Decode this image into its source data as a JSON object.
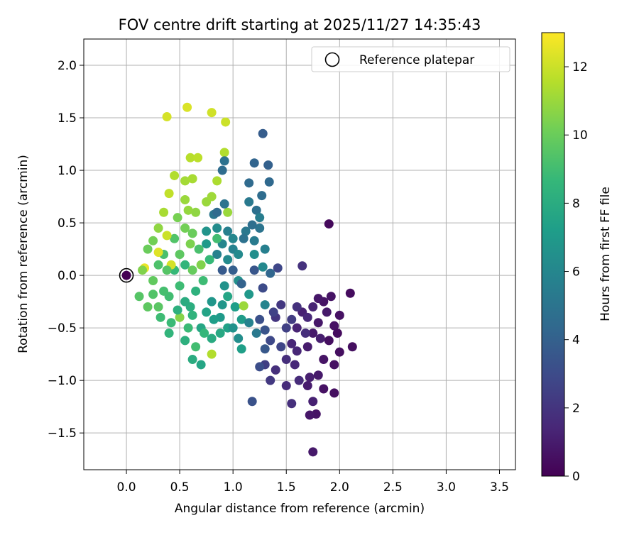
{
  "chart_data": {
    "type": "scatter",
    "title": "FOV centre drift starting at 2025/11/27 14:35:43",
    "xlabel": "Angular distance from reference (arcmin)",
    "ylabel": "Rotation from reference (arcmin)",
    "xlim": [
      -0.4,
      3.65
    ],
    "ylim": [
      -1.85,
      2.25
    ],
    "xticks": [
      0.0,
      0.5,
      1.0,
      1.5,
      2.0,
      2.5,
      3.0,
      3.5
    ],
    "yticks": [
      -1.5,
      -1.0,
      -0.5,
      0.0,
      0.5,
      1.0,
      1.5,
      2.0
    ],
    "xtick_labels": [
      "0.0",
      "0.5",
      "1.0",
      "1.5",
      "2.0",
      "2.5",
      "3.0",
      "3.5"
    ],
    "ytick_labels": [
      "−1.5",
      "−1.0",
      "−0.5",
      "0.0",
      "0.5",
      "1.0",
      "1.5",
      "2.0"
    ],
    "grid": true,
    "legend": {
      "placement": "top-right",
      "entries": [
        {
          "label": "Reference platepar",
          "marker": "open-circle"
        }
      ]
    },
    "reference_point": {
      "x": 0.0,
      "y": 0.0
    },
    "colorbar": {
      "label": "Hours from first FF file",
      "range": [
        0,
        13
      ],
      "ticks": [
        0,
        2,
        4,
        6,
        8,
        10,
        12
      ],
      "colormap": "viridis"
    },
    "points": [
      [
        1.9,
        0.49,
        0.3
      ],
      [
        2.1,
        -0.17,
        0.4
      ],
      [
        2.12,
        -0.68,
        0.5
      ],
      [
        2.0,
        -0.73,
        0.5
      ],
      [
        1.95,
        -0.48,
        0.6
      ],
      [
        1.85,
        -0.25,
        0.7
      ],
      [
        1.8,
        -0.45,
        0.8
      ],
      [
        1.95,
        -0.85,
        0.6
      ],
      [
        1.9,
        -0.62,
        0.5
      ],
      [
        1.75,
        -0.55,
        0.9
      ],
      [
        1.7,
        -0.68,
        1.0
      ],
      [
        1.8,
        -0.22,
        0.8
      ],
      [
        1.95,
        -1.12,
        0.5
      ],
      [
        1.85,
        -1.08,
        0.6
      ],
      [
        1.78,
        -1.32,
        0.7
      ],
      [
        1.72,
        -1.33,
        0.8
      ],
      [
        1.75,
        -1.68,
        0.9
      ],
      [
        1.72,
        -0.97,
        1.1
      ],
      [
        1.65,
        -0.35,
        1.2
      ],
      [
        1.6,
        -0.5,
        1.3
      ],
      [
        1.55,
        -0.65,
        1.4
      ],
      [
        1.58,
        -0.85,
        1.5
      ],
      [
        1.62,
        -1.0,
        1.6
      ],
      [
        1.5,
        -0.8,
        1.7
      ],
      [
        1.55,
        -1.22,
        1.8
      ],
      [
        1.65,
        0.09,
        1.9
      ],
      [
        1.4,
        -0.4,
        2.0
      ],
      [
        1.35,
        -1.0,
        2.2
      ],
      [
        1.3,
        -0.85,
        2.4
      ],
      [
        1.38,
        -0.35,
        2.6
      ],
      [
        1.42,
        0.07,
        2.8
      ],
      [
        1.28,
        -0.12,
        3.0
      ],
      [
        1.25,
        -0.42,
        3.2
      ],
      [
        1.18,
        -1.2,
        3.3
      ],
      [
        1.3,
        -0.52,
        3.4
      ],
      [
        1.2,
        0.05,
        3.5
      ],
      [
        1.28,
        1.35,
        3.8
      ],
      [
        1.33,
        1.05,
        4.0
      ],
      [
        1.2,
        1.07,
        4.2
      ],
      [
        1.34,
        0.89,
        4.4
      ],
      [
        1.15,
        0.88,
        4.5
      ],
      [
        1.27,
        0.76,
        4.6
      ],
      [
        1.22,
        0.62,
        4.8
      ],
      [
        1.25,
        0.45,
        5.0
      ],
      [
        1.12,
        0.42,
        5.2
      ],
      [
        1.2,
        0.33,
        5.4
      ],
      [
        1.3,
        0.25,
        5.6
      ],
      [
        1.0,
        0.25,
        5.8
      ],
      [
        0.9,
        0.3,
        6.0
      ],
      [
        0.95,
        0.15,
        6.2
      ],
      [
        0.85,
        0.45,
        6.3
      ],
      [
        1.05,
        -0.05,
        6.5
      ],
      [
        0.92,
        -0.1,
        6.6
      ],
      [
        0.8,
        -0.25,
        6.8
      ],
      [
        0.88,
        -0.4,
        7.0
      ],
      [
        1.02,
        -0.3,
        7.2
      ],
      [
        0.95,
        -0.5,
        7.4
      ],
      [
        0.75,
        -0.35,
        7.5
      ],
      [
        0.7,
        -0.5,
        7.7
      ],
      [
        0.8,
        -0.6,
        7.9
      ],
      [
        0.6,
        -0.3,
        8.1
      ],
      [
        0.65,
        -0.15,
        8.3
      ],
      [
        0.55,
        0.1,
        8.5
      ],
      [
        0.45,
        0.05,
        8.7
      ],
      [
        0.5,
        -0.1,
        8.9
      ],
      [
        0.4,
        -0.2,
        9.0
      ],
      [
        0.35,
        0.2,
        9.2
      ],
      [
        0.45,
        0.35,
        9.4
      ],
      [
        0.3,
        -0.3,
        9.6
      ],
      [
        0.25,
        -0.05,
        9.8
      ],
      [
        0.2,
        0.25,
        10.0
      ],
      [
        0.55,
        0.45,
        10.2
      ],
      [
        0.6,
        0.3,
        10.4
      ],
      [
        0.7,
        0.1,
        10.5
      ],
      [
        0.5,
        -0.4,
        10.6
      ],
      [
        0.65,
        0.6,
        10.8
      ],
      [
        0.75,
        0.7,
        11.0
      ],
      [
        0.95,
        0.6,
        11.0
      ],
      [
        0.55,
        0.9,
        11.2
      ],
      [
        0.85,
        0.9,
        11.4
      ],
      [
        0.6,
        1.12,
        11.6
      ],
      [
        0.4,
        0.78,
        11.8
      ],
      [
        0.38,
        0.38,
        12.0
      ],
      [
        0.42,
        0.1,
        12.2
      ],
      [
        0.3,
        0.22,
        12.4
      ],
      [
        0.17,
        0.07,
        12.6
      ],
      [
        0.38,
        1.51,
        12.2
      ],
      [
        0.57,
        1.6,
        12.3
      ],
      [
        0.8,
        1.55,
        12.1
      ],
      [
        0.93,
        1.46,
        12.0
      ],
      [
        0.67,
        1.12,
        11.7
      ],
      [
        0.92,
        1.17,
        11.5
      ],
      [
        0.62,
        0.92,
        11.3
      ],
      [
        0.8,
        0.75,
        11.1
      ],
      [
        0.58,
        0.62,
        10.9
      ],
      [
        1.1,
        -0.29,
        11.0
      ],
      [
        0.8,
        -0.75,
        11.5
      ],
      [
        0.65,
        -0.68,
        9.0
      ],
      [
        0.58,
        -0.5,
        8.8
      ],
      [
        0.73,
        -0.55,
        8.6
      ],
      [
        0.62,
        -0.38,
        8.4
      ],
      [
        0.55,
        -0.25,
        8.0
      ],
      [
        0.48,
        -0.33,
        8.2
      ],
      [
        0.42,
        -0.45,
        8.8
      ],
      [
        0.35,
        -0.15,
        9.1
      ],
      [
        0.3,
        0.1,
        9.3
      ],
      [
        0.38,
        0.05,
        9.5
      ],
      [
        0.5,
        0.2,
        9.7
      ],
      [
        0.62,
        0.05,
        9.9
      ],
      [
        0.72,
        -0.05,
        8.9
      ],
      [
        0.78,
        0.15,
        8.7
      ],
      [
        0.85,
        0.35,
        9.0
      ],
      [
        0.95,
        -0.2,
        7.6
      ],
      [
        0.88,
        -0.55,
        7.8
      ],
      [
        1.08,
        -0.7,
        7.3
      ],
      [
        1.08,
        -0.42,
        7.1
      ],
      [
        1.15,
        -0.18,
        6.9
      ],
      [
        1.2,
        0.2,
        6.4
      ],
      [
        1.28,
        0.08,
        6.1
      ],
      [
        1.3,
        -0.28,
        5.9
      ],
      [
        1.25,
        0.55,
        5.5
      ],
      [
        1.15,
        0.7,
        5.3
      ],
      [
        1.1,
        0.35,
        4.9
      ],
      [
        1.18,
        0.48,
        4.7
      ],
      [
        1.35,
        0.02,
        4.3
      ],
      [
        1.08,
        -0.08,
        4.1
      ],
      [
        1.0,
        0.05,
        3.9
      ],
      [
        0.9,
        0.05,
        3.7
      ],
      [
        0.85,
        0.2,
        5.7
      ],
      [
        0.75,
        0.42,
        6.7
      ],
      [
        0.82,
        0.58,
        5.1
      ],
      [
        0.9,
        1.0,
        4.6
      ],
      [
        0.92,
        1.09,
        4.9
      ],
      [
        0.85,
        0.6,
        4.5
      ],
      [
        0.92,
        0.68,
        5.0
      ],
      [
        0.95,
        0.42,
        5.6
      ],
      [
        1.0,
        0.35,
        6.0
      ],
      [
        1.05,
        0.2,
        6.2
      ],
      [
        0.75,
        0.3,
        7.0
      ],
      [
        0.68,
        0.25,
        9.2
      ],
      [
        0.62,
        0.4,
        10.0
      ],
      [
        0.48,
        0.55,
        10.3
      ],
      [
        0.55,
        0.72,
        11.0
      ],
      [
        0.45,
        0.95,
        11.5
      ],
      [
        0.35,
        0.6,
        11.3
      ],
      [
        0.3,
        0.45,
        10.8
      ],
      [
        0.25,
        0.33,
        10.2
      ],
      [
        0.15,
        0.05,
        10.5
      ],
      [
        0.12,
        -0.2,
        9.5
      ],
      [
        0.2,
        -0.3,
        9.7
      ],
      [
        0.25,
        -0.18,
        9.4
      ],
      [
        0.32,
        -0.4,
        8.9
      ],
      [
        0.4,
        -0.55,
        8.5
      ],
      [
        0.55,
        -0.62,
        8.2
      ],
      [
        0.62,
        -0.8,
        8.0
      ],
      [
        0.7,
        -0.85,
        7.6
      ],
      [
        0.82,
        -0.42,
        7.2
      ],
      [
        0.9,
        -0.28,
        6.8
      ],
      [
        1.0,
        -0.5,
        6.6
      ],
      [
        1.05,
        -0.6,
        6.4
      ],
      [
        1.15,
        -0.45,
        5.8
      ],
      [
        1.22,
        -0.55,
        5.3
      ],
      [
        1.3,
        -0.7,
        3.6
      ],
      [
        1.25,
        -0.87,
        3.1
      ],
      [
        1.35,
        -0.62,
        2.9
      ],
      [
        1.45,
        -0.68,
        2.7
      ],
      [
        1.5,
        -0.5,
        2.5
      ],
      [
        1.55,
        -0.42,
        2.3
      ],
      [
        1.45,
        -0.28,
        2.1
      ],
      [
        1.6,
        -0.3,
        1.9
      ],
      [
        1.68,
        -0.55,
        1.7
      ],
      [
        1.7,
        -0.4,
        1.5
      ],
      [
        1.75,
        -0.3,
        1.3
      ],
      [
        1.82,
        -0.6,
        1.1
      ],
      [
        1.88,
        -0.35,
        0.9
      ],
      [
        1.92,
        -0.2,
        0.7
      ],
      [
        2.0,
        -0.38,
        0.6
      ],
      [
        1.98,
        -0.55,
        0.4
      ],
      [
        1.85,
        -0.8,
        0.7
      ],
      [
        1.8,
        -0.95,
        0.9
      ],
      [
        1.7,
        -1.05,
        1.0
      ],
      [
        1.75,
        -1.2,
        1.2
      ],
      [
        1.6,
        -0.72,
        1.4
      ],
      [
        1.5,
        -1.05,
        1.6
      ],
      [
        1.4,
        -0.9,
        1.8
      ]
    ]
  }
}
